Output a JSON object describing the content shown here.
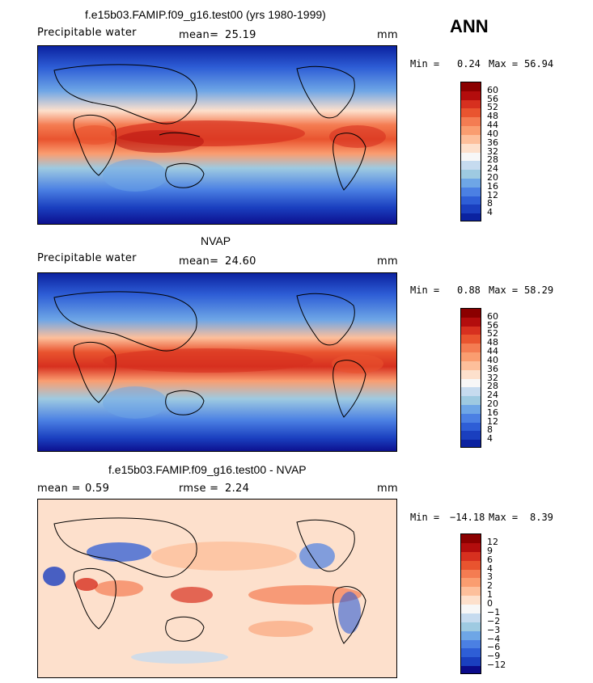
{
  "season": "ANN",
  "panels": [
    {
      "title": "f.e15b03.FAMIP.f09_g16.test00 (yrs 1980-1999)",
      "left_label": "Precipitable water",
      "mid_label": "mean=",
      "mid_value": "25.19",
      "right_label": "mm",
      "min_label": "Min =",
      "min_value": "0.24",
      "max_label": "Max =",
      "max_value": "56.94",
      "colorbar_ticks": [
        "60",
        "56",
        "52",
        "48",
        "44",
        "40",
        "36",
        "32",
        "28",
        "24",
        "20",
        "16",
        "12",
        "8",
        "4"
      ]
    },
    {
      "title": "NVAP",
      "left_label": "Precipitable water",
      "mid_label": "mean=",
      "mid_value": "24.60",
      "right_label": "mm",
      "min_label": "Min =",
      "min_value": "0.88",
      "max_label": "Max =",
      "max_value": "58.29",
      "colorbar_ticks": [
        "60",
        "56",
        "52",
        "48",
        "44",
        "40",
        "36",
        "32",
        "28",
        "24",
        "20",
        "16",
        "12",
        "8",
        "4"
      ]
    },
    {
      "title": "f.e15b03.FAMIP.f09_g16.test00 - NVAP",
      "left_label": "mean =",
      "left_value": "0.59",
      "mid_label": "rmse =",
      "mid_value": "2.24",
      "right_label": "mm",
      "min_label": "Min =",
      "min_value": "−14.18",
      "max_label": "Max =",
      "max_value": "8.39",
      "colorbar_ticks": [
        "12",
        "9",
        "6",
        "4",
        "3",
        "2",
        "1",
        "0",
        "−1",
        "−2",
        "−3",
        "−4",
        "−6",
        "−9",
        "−12"
      ]
    }
  ],
  "colors": {
    "abs_scale": [
      "#8b0000",
      "#b30d0d",
      "#d7301f",
      "#e9542f",
      "#f47c52",
      "#fa9d70",
      "#fdbf9b",
      "#fde0cc",
      "#f7f7f7",
      "#c6dbef",
      "#9ecae1",
      "#6ea6e6",
      "#4b80e3",
      "#2e5ed6",
      "#1a3fbf",
      "#0b22a0"
    ],
    "diff_scale": [
      "#8b0000",
      "#b30d0d",
      "#d7301f",
      "#e9542f",
      "#f47c52",
      "#fa9d70",
      "#fdbf9b",
      "#fde0cc",
      "#f7f7f7",
      "#c6dbef",
      "#9ecae1",
      "#6ea6e6",
      "#4b80e3",
      "#2e5ed6",
      "#1a3fbf",
      "#0b0b8a"
    ]
  }
}
